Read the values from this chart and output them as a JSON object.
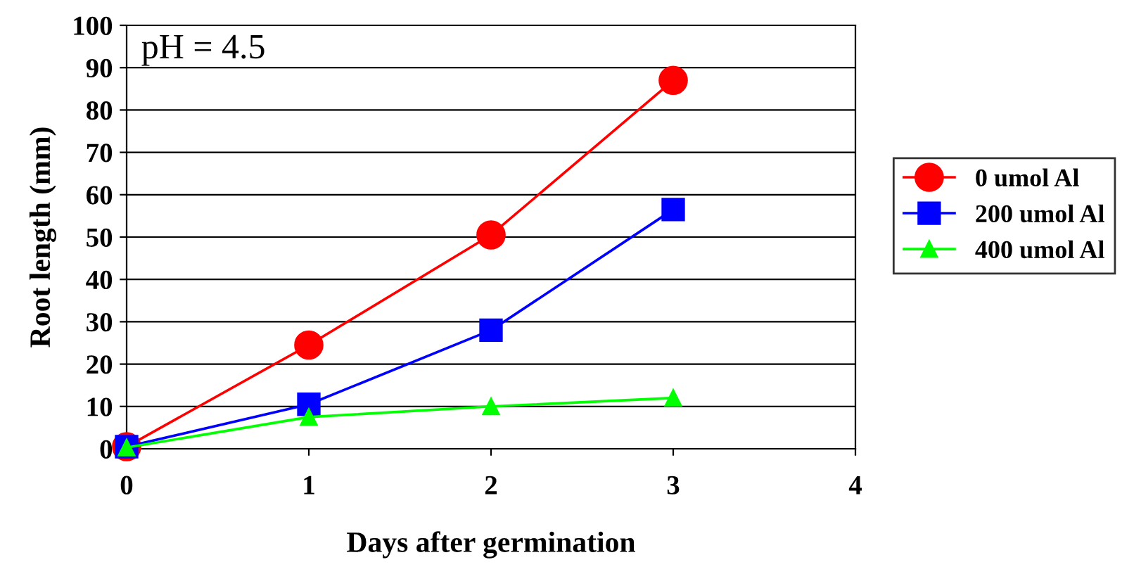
{
  "chart_data": {
    "type": "line",
    "xlabel": "Days after germination",
    "ylabel": "Root length (mm)",
    "annotations": [
      "pH = 4.5"
    ],
    "x": [
      0,
      1,
      2,
      3
    ],
    "xlim": [
      0,
      4
    ],
    "xticks": [
      0,
      1,
      2,
      3,
      4
    ],
    "ylim": [
      0,
      100
    ],
    "yticks": [
      0,
      10,
      20,
      30,
      40,
      50,
      60,
      70,
      80,
      90,
      100
    ],
    "grid": "y",
    "legend": "right",
    "line_style": "solid",
    "series": [
      {
        "name": "0 umol Al",
        "color": "#ff0000",
        "marker": "circle",
        "values": [
          0.5,
          24.5,
          50.5,
          87
        ]
      },
      {
        "name": "200 umol Al",
        "color": "#0000ff",
        "marker": "square",
        "values": [
          0.5,
          10.5,
          28,
          56.5
        ]
      },
      {
        "name": "400 umol Al",
        "color": "#00ff00",
        "marker": "triangle",
        "values": [
          0.3,
          7.5,
          10,
          12
        ]
      }
    ]
  }
}
